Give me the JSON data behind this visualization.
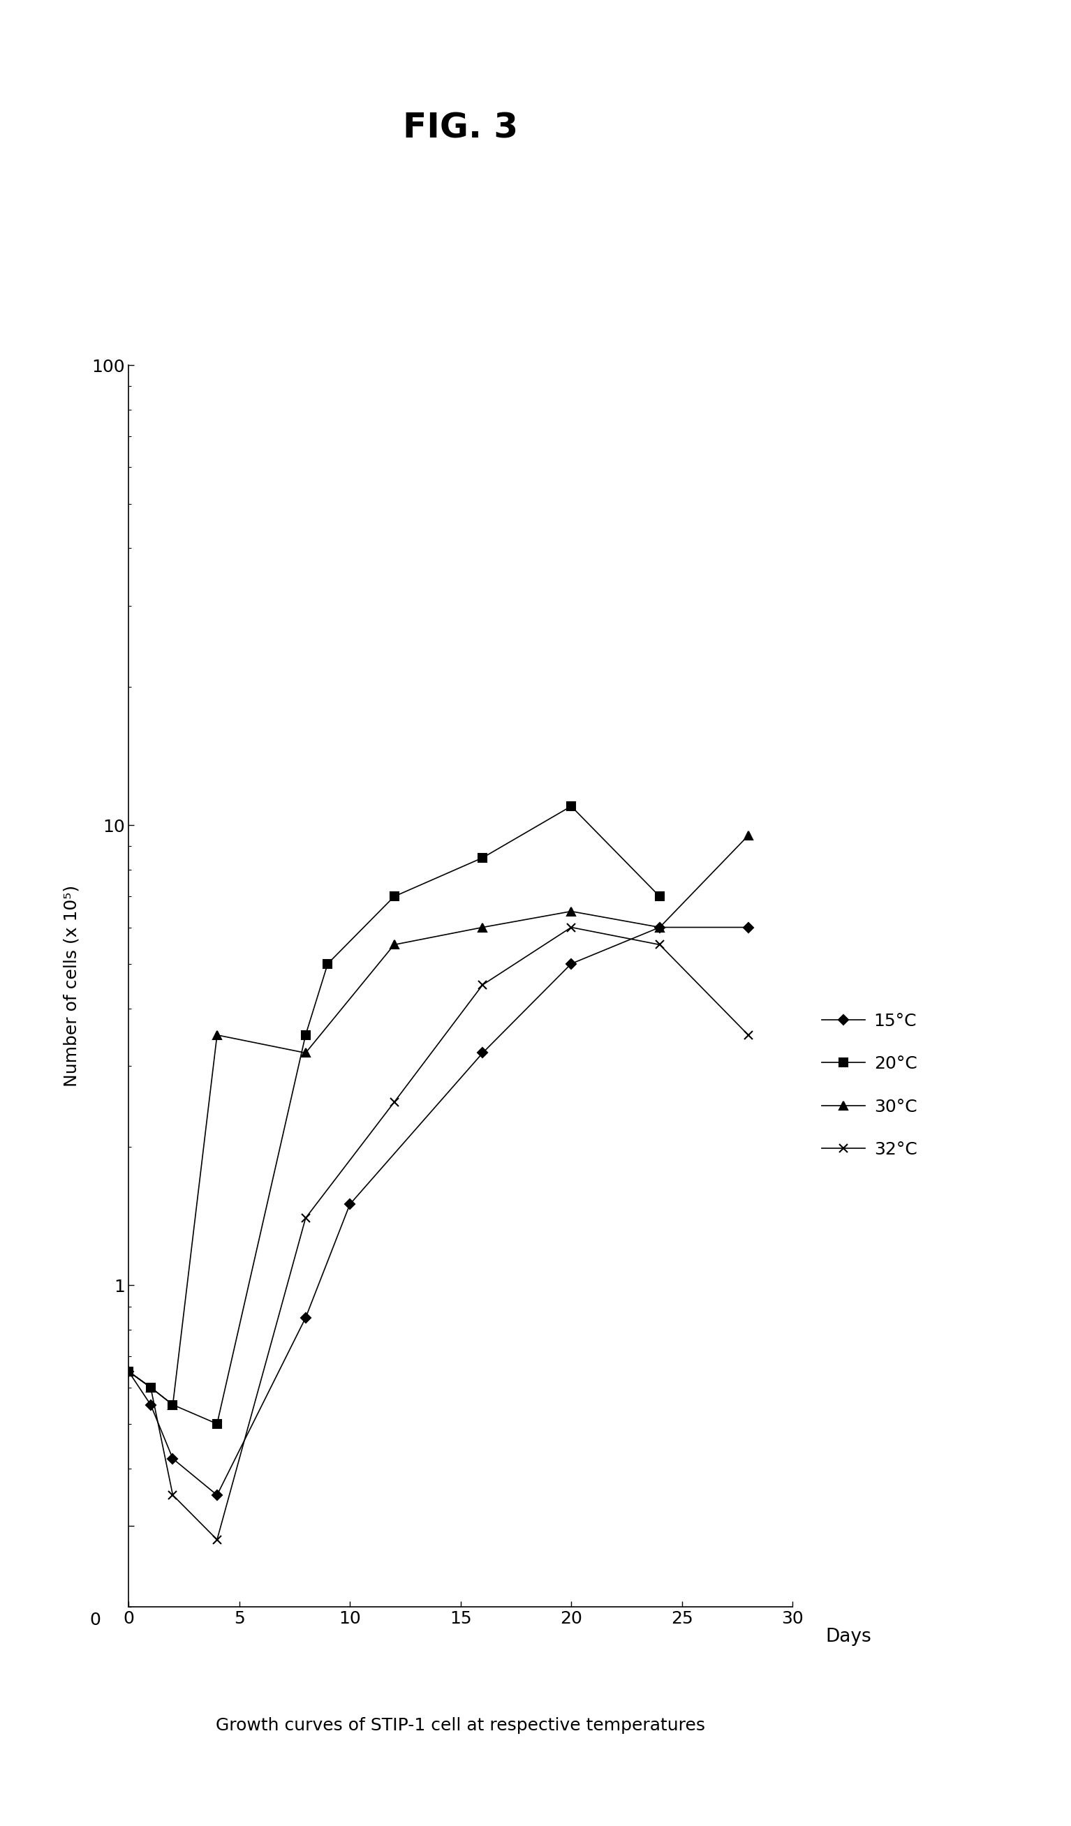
{
  "title": "FIG. 3",
  "subtitle": "Growth curves of STIP-1 cell at respective temperatures",
  "xlabel": "Days",
  "ylabel": "Number of cells (x 10⁵)",
  "series": [
    {
      "label": "15°C",
      "marker": "D",
      "x": [
        0,
        1,
        2,
        4,
        8,
        10,
        16,
        20,
        24,
        28
      ],
      "y": [
        0.65,
        0.55,
        0.42,
        0.35,
        0.85,
        1.5,
        3.2,
        5.0,
        6.0,
        6.0
      ]
    },
    {
      "label": "20°C",
      "marker": "s",
      "x": [
        0,
        1,
        2,
        4,
        8,
        9,
        12,
        16,
        20,
        24
      ],
      "y": [
        0.65,
        0.6,
        0.55,
        0.5,
        3.5,
        5.0,
        7.0,
        8.5,
        11.0,
        7.0
      ]
    },
    {
      "label": "30°C",
      "marker": "^",
      "x": [
        0,
        1,
        2,
        4,
        8,
        12,
        16,
        20,
        24,
        28
      ],
      "y": [
        0.65,
        0.6,
        0.55,
        3.5,
        3.2,
        5.5,
        6.0,
        6.5,
        6.0,
        9.5
      ]
    },
    {
      "label": "32°C",
      "marker": "x",
      "x": [
        0,
        1,
        2,
        4,
        8,
        12,
        16,
        20,
        24,
        28
      ],
      "y": [
        0.65,
        0.6,
        0.35,
        0.28,
        1.4,
        2.5,
        4.5,
        6.0,
        5.5,
        3.5
      ]
    }
  ],
  "xlim": [
    0,
    30
  ],
  "ylim": [
    0.2,
    100
  ],
  "xticks": [
    0,
    5,
    10,
    15,
    20,
    25,
    30
  ],
  "line_color": "#000000",
  "background_color": "#ffffff",
  "title_fontsize": 36,
  "subtitle_fontsize": 18,
  "axis_fontsize": 18,
  "tick_fontsize": 18,
  "legend_fontsize": 18
}
